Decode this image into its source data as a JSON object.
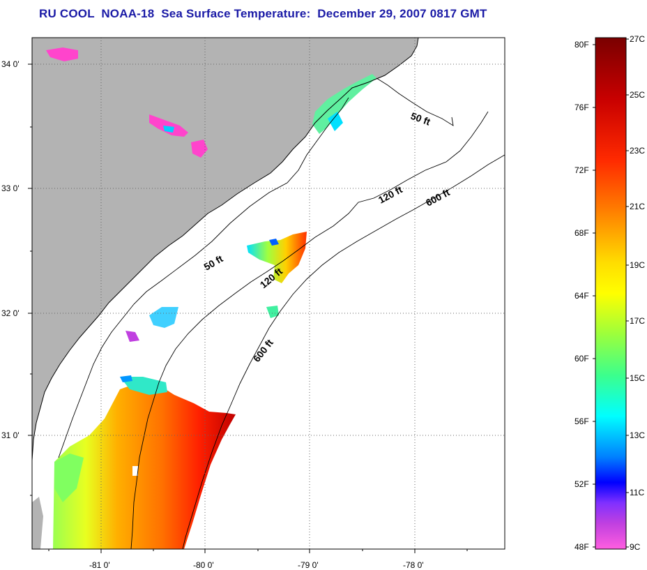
{
  "title": "RU COOL  NOAA-18  Sea Surface Temperature:  December 29, 2007 0817 GMT",
  "map": {
    "lon_labels": [
      "-81 0'",
      "-80 0'",
      "-79 0'",
      "-78 0'"
    ],
    "lat_labels": [
      "34 0'",
      "33 0'",
      "32 0'",
      "31 0'"
    ],
    "contours": [
      {
        "label": "50 ft"
      },
      {
        "label": "120 ft"
      },
      {
        "label": "600 ft"
      },
      {
        "label": "50 ft"
      },
      {
        "label": "120 ft"
      },
      {
        "label": "600 ft"
      }
    ],
    "colors": {
      "land": "#b3b3b3",
      "sea": "#ffffff",
      "grid": "#555555",
      "coast": "#000000"
    }
  },
  "colorbar": {
    "left_labels": [
      "80F",
      "76F",
      "72F",
      "68F",
      "64F",
      "60F",
      "56F",
      "52F",
      "48F"
    ],
    "right_labels": [
      "27C",
      "25C",
      "23C",
      "21C",
      "19C",
      "17C",
      "15C",
      "13C",
      "11C",
      "9C"
    ],
    "gradient": [
      "#7a0000",
      "#c80000",
      "#ff2a00",
      "#ff7000",
      "#ffb400",
      "#ffff00",
      "#b4ff3c",
      "#3cff8c",
      "#00ffff",
      "#008cff",
      "#0000ff",
      "#8c00ff",
      "#ff3cd2",
      "#ff6ee6"
    ]
  }
}
